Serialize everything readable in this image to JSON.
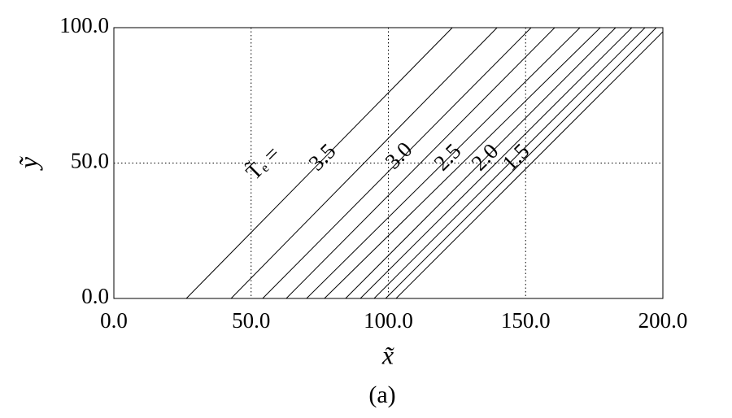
{
  "chart_data": {
    "type": "contour",
    "x_label": "x̃",
    "y_label": "ỹ",
    "caption": "(a)",
    "xlim": [
      0,
      200
    ],
    "ylim": [
      0,
      100
    ],
    "xticks": [
      {
        "value": 0,
        "label": "0.0"
      },
      {
        "value": 50,
        "label": "50.0"
      },
      {
        "value": 100,
        "label": "100.0"
      },
      {
        "value": 150,
        "label": "150.0"
      },
      {
        "value": 200,
        "label": "200.0"
      }
    ],
    "yticks": [
      {
        "value": 0,
        "label": "0.0"
      },
      {
        "value": 50,
        "label": "50.0"
      },
      {
        "value": 100,
        "label": "100.0"
      }
    ],
    "grid": true,
    "color": "#000000",
    "contours": [
      {
        "x": [
          26.4,
          123.3
        ],
        "y": [
          0,
          100
        ]
      },
      {
        "x": [
          42.7,
          139.6
        ],
        "y": [
          0,
          100
        ]
      },
      {
        "x": [
          54.2,
          152.0
        ],
        "y": [
          0,
          100
        ]
      },
      {
        "x": [
          62.8,
          160.6
        ],
        "y": [
          0,
          100
        ]
      },
      {
        "x": [
          70.2,
          169.8
        ],
        "y": [
          0,
          100
        ]
      },
      {
        "x": [
          76.7,
          177.2
        ],
        "y": [
          0,
          100
        ]
      },
      {
        "x": [
          84.4,
          182.8
        ],
        "y": [
          0,
          100
        ]
      },
      {
        "x": [
          89.8,
          188.7
        ],
        "y": [
          0,
          100
        ]
      },
      {
        "x": [
          94.8,
          193.5
        ],
        "y": [
          0,
          100
        ]
      },
      {
        "x": [
          99.0,
          197.6
        ],
        "y": [
          0,
          100
        ]
      },
      {
        "x": [
          102.8,
          201.5
        ],
        "y": [
          0,
          100
        ]
      }
    ],
    "annotations": [
      "T̃ₑ =",
      "3.5",
      "3.0",
      "2.5",
      "2.0",
      "1.5"
    ]
  }
}
